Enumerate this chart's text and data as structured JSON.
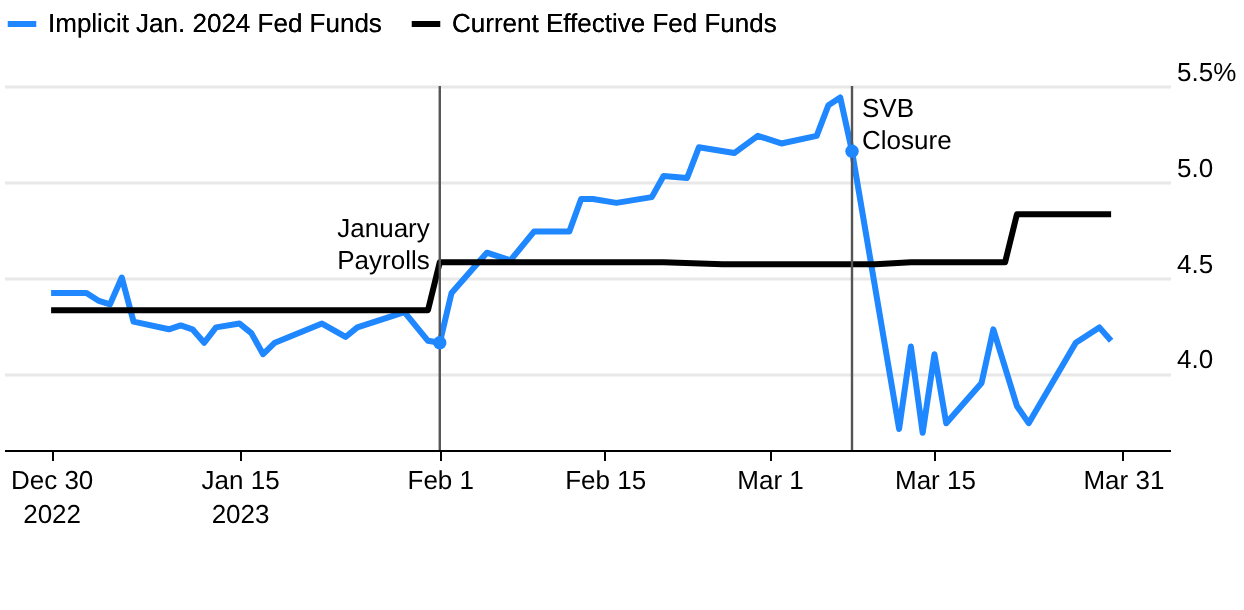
{
  "chart_data": {
    "type": "line",
    "legend": "top left",
    "grid": "y",
    "xlim": [
      "2022-12-26",
      "2023-04-04"
    ],
    "xticks": [
      {
        "value": "2022-12-30",
        "label": "Dec 30\n2022"
      },
      {
        "value": "2023-01-15",
        "label": "Jan 15\n2023"
      },
      {
        "value": "2023-02-01",
        "label": "Feb 1"
      },
      {
        "value": "2023-02-15",
        "label": "Feb 15"
      },
      {
        "value": "2023-03-01",
        "label": "Mar 1"
      },
      {
        "value": "2023-03-15",
        "label": "Mar 15"
      },
      {
        "value": "2023-03-31",
        "label": "Mar 31"
      }
    ],
    "ylim": [
      3.6,
      5.5
    ],
    "yticks": [
      {
        "value": 4,
        "label": "4.0"
      },
      4.5,
      {
        "value": 5,
        "label": "5.0"
      },
      {
        "value": 5.5,
        "label": "5.5%"
      }
    ],
    "ref_lines": [
      {
        "axis": "x",
        "value": "2023-02-01",
        "label": "January Payrolls",
        "color": "#555555"
      },
      {
        "axis": "x",
        "value": "2023-03-08",
        "label": "SVB Closure",
        "color": "#555555"
      }
    ],
    "series": [
      {
        "name": "Implicit Jan. 2024 Fed Funds",
        "color": "#1f87ff",
        "x": [
          "2022-12-30",
          "2023-01-02",
          "2023-01-03",
          "2023-01-04",
          "2023-01-05",
          "2023-01-06",
          "2023-01-09",
          "2023-01-10",
          "2023-01-11",
          "2023-01-12",
          "2023-01-13",
          "2023-01-15",
          "2023-01-16",
          "2023-01-17",
          "2023-01-18",
          "2023-01-22",
          "2023-01-24",
          "2023-01-25",
          "2023-01-29",
          "2023-01-31",
          "2023-02-01",
          "2023-02-02",
          "2023-02-05",
          "2023-02-07",
          "2023-02-09",
          "2023-02-12",
          "2023-02-13",
          "2023-02-14",
          "2023-02-16",
          "2023-02-19",
          "2023-02-20",
          "2023-02-22",
          "2023-02-23",
          "2023-02-26",
          "2023-02-28",
          "2023-03-02",
          "2023-03-05",
          "2023-03-06",
          "2023-03-07",
          "2023-03-08",
          "2023-03-12",
          "2023-03-13",
          "2023-03-14",
          "2023-03-15",
          "2023-03-16",
          "2023-03-19",
          "2023-03-20",
          "2023-03-22",
          "2023-03-23",
          "2023-03-27",
          "2023-03-29",
          "2023-03-30"
        ],
        "values": [
          4.42,
          4.42,
          4.38,
          4.36,
          4.5,
          4.27,
          4.23,
          4.25,
          4.23,
          4.16,
          4.24,
          4.26,
          4.21,
          4.1,
          4.16,
          4.26,
          4.19,
          4.24,
          4.32,
          4.17,
          4.16,
          4.42,
          4.63,
          4.59,
          4.74,
          4.74,
          4.91,
          4.91,
          4.89,
          4.92,
          5.03,
          5.02,
          5.18,
          5.15,
          5.24,
          5.2,
          5.24,
          5.4,
          5.44,
          5.16,
          3.71,
          4.14,
          3.69,
          4.1,
          3.74,
          3.95,
          4.23,
          3.83,
          3.74,
          4.16,
          4.24,
          4.17
        ]
      },
      {
        "name": "Current Effective Fed Funds",
        "color": "#000000",
        "x": [
          "2022-12-30",
          "2023-01-31",
          "2023-02-01",
          "2023-02-20",
          "2023-02-25",
          "2023-03-03",
          "2023-03-10",
          "2023-03-13",
          "2023-03-21",
          "2023-03-22",
          "2023-03-30"
        ],
        "values": [
          4.33,
          4.33,
          4.58,
          4.58,
          4.57,
          4.57,
          4.57,
          4.58,
          4.58,
          4.83,
          4.83
        ]
      },
      {
        "type": "scatter",
        "color": "#1f87ff",
        "x": [
          "2023-02-01",
          "2023-03-08"
        ],
        "values": [
          4.16,
          5.16
        ]
      }
    ]
  }
}
